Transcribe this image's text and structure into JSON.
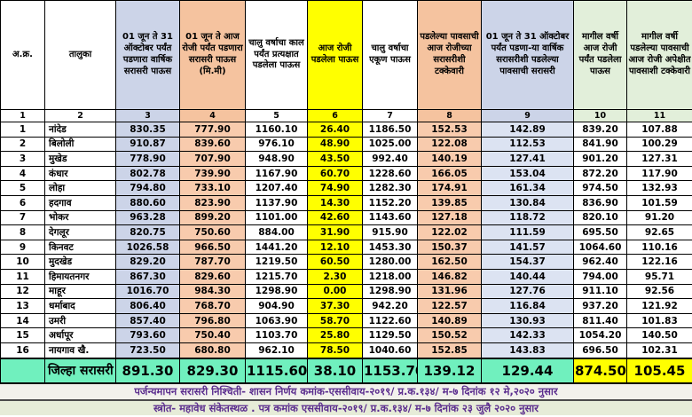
{
  "colors": {
    "blue_header": "#CCD4E8",
    "blue_cell": "#DCE3F2",
    "peach_header": "#F5C39F",
    "peach_cell": "#F8CBAD",
    "yellow": "#FFFF00",
    "green_header": "#E2EFDA",
    "mint_total": "#70F0BE",
    "footer_text": "#5B2D8E",
    "white": "#FFFFFF"
  },
  "table": {
    "columns": [
      {
        "num": "1",
        "label": "अ.क्र.",
        "header_bg": "#FFFFFF",
        "cell_bg": "#FFFFFF"
      },
      {
        "num": "2",
        "label": "तालुका",
        "header_bg": "#FFFFFF",
        "cell_bg": "#FFFFFF"
      },
      {
        "num": "3",
        "label": "01 जून ते 31 ऑक्टोबर पर्यंत पडणारा वार्षिक सरासरी पाऊस",
        "header_bg": "#CCD4E8",
        "cell_bg": "#CCD4E8"
      },
      {
        "num": "4",
        "label": "01 जून ते आज रोजी  पर्यंत पडणारा सरासरी पाऊस (मि.मी)",
        "header_bg": "#F5C39F",
        "cell_bg": "#F8CBAD"
      },
      {
        "num": "5",
        "label": "चालु वर्षाचा काल पर्यंत प्रत्यक्षात पडलेला पाऊस",
        "header_bg": "#FFFFFF",
        "cell_bg": "#FFFFFF"
      },
      {
        "num": "6",
        "label": "आज रोजी पडलेला पाऊस",
        "header_bg": "#FFFF00",
        "cell_bg": "#FFFF00"
      },
      {
        "num": "7",
        "label": "चालु वर्षाचा एकूण पाऊस",
        "header_bg": "#FFFFFF",
        "cell_bg": "#FFFFFF"
      },
      {
        "num": "8",
        "label": "पडलेल्या पावसाची आज रोजीच्या सरासरीशी टक्केवारी",
        "header_bg": "#F5C39F",
        "cell_bg": "#F8CBAD"
      },
      {
        "num": "9",
        "label": "01 जून ते 31 ऑक्टोबर पर्यंत पडणा-या वार्षिक सरासरीशी पडलेल्या पावसाची सरासरी",
        "header_bg": "#CCD4E8",
        "cell_bg": "#DCE3F2"
      },
      {
        "num": "10",
        "label": "मागील वर्षी आज रोजी पर्यंत पडलेला पाऊस",
        "header_bg": "#E2EFDA",
        "cell_bg": "#FFFFFF"
      },
      {
        "num": "11",
        "label": "मागील वर्षी पडलेल्या पावसाची आज रोजी अपेक्षीत पावसाशी टक्केवारी",
        "header_bg": "#E2EFDA",
        "cell_bg": "#FFFFFF"
      }
    ],
    "rows": [
      {
        "sr": "1",
        "taluka": "नांदेड",
        "values": [
          "830.35",
          "777.90",
          "1160.10",
          "26.40",
          "1186.50",
          "152.53",
          "142.89",
          "839.20",
          "107.88"
        ]
      },
      {
        "sr": "2",
        "taluka": "बिलोली",
        "values": [
          "910.87",
          "839.60",
          "976.10",
          "48.90",
          "1025.00",
          "122.08",
          "112.53",
          "841.90",
          "100.29"
        ]
      },
      {
        "sr": "3",
        "taluka": "मुखेड",
        "values": [
          "778.90",
          "707.90",
          "948.90",
          "43.50",
          "992.40",
          "140.19",
          "127.41",
          "901.20",
          "127.31"
        ]
      },
      {
        "sr": "4",
        "taluka": "कंधार",
        "values": [
          "802.78",
          "739.90",
          "1167.90",
          "60.70",
          "1228.60",
          "166.05",
          "153.04",
          "872.20",
          "117.90"
        ]
      },
      {
        "sr": "5",
        "taluka": "लोहा",
        "values": [
          "794.80",
          "733.10",
          "1207.40",
          "74.90",
          "1282.30",
          "174.91",
          "161.34",
          "974.50",
          "132.93"
        ]
      },
      {
        "sr": "6",
        "taluka": "हदगाव",
        "values": [
          "880.60",
          "823.90",
          "1137.90",
          "14.30",
          "1152.20",
          "139.85",
          "130.84",
          "836.90",
          "101.59"
        ]
      },
      {
        "sr": "7",
        "taluka": "भोकर",
        "values": [
          "963.28",
          "899.20",
          "1101.00",
          "42.60",
          "1143.60",
          "127.18",
          "118.72",
          "820.10",
          "91.20"
        ]
      },
      {
        "sr": "8",
        "taluka": "देगलूर",
        "values": [
          "820.75",
          "750.60",
          "884.00",
          "31.90",
          "915.90",
          "122.02",
          "111.59",
          "695.50",
          "92.65"
        ]
      },
      {
        "sr": "9",
        "taluka": "किनवट",
        "values": [
          "1026.58",
          "966.50",
          "1441.20",
          "12.10",
          "1453.30",
          "150.37",
          "141.57",
          "1064.60",
          "110.16"
        ]
      },
      {
        "sr": "10",
        "taluka": "मुदखेड",
        "values": [
          "829.20",
          "787.70",
          "1219.50",
          "60.50",
          "1280.00",
          "162.50",
          "154.37",
          "962.40",
          "122.16"
        ]
      },
      {
        "sr": "11",
        "taluka": "हिमायतनगर",
        "values": [
          "867.30",
          "829.60",
          "1215.70",
          "2.30",
          "1218.00",
          "146.82",
          "140.44",
          "794.00",
          "95.71"
        ]
      },
      {
        "sr": "12",
        "taluka": "माहूर",
        "values": [
          "1016.70",
          "984.30",
          "1298.90",
          "0.00",
          "1298.90",
          "131.96",
          "127.76",
          "911.10",
          "92.56"
        ]
      },
      {
        "sr": "13",
        "taluka": "धर्माबाद",
        "values": [
          "806.40",
          "768.70",
          "904.90",
          "37.30",
          "942.20",
          "122.57",
          "116.84",
          "937.20",
          "121.92"
        ]
      },
      {
        "sr": "14",
        "taluka": "उमरी",
        "values": [
          "857.40",
          "796.80",
          "1063.90",
          "58.70",
          "1122.60",
          "140.89",
          "130.93",
          "811.40",
          "101.83"
        ]
      },
      {
        "sr": "15",
        "taluka": "अर्धापूर",
        "values": [
          "793.60",
          "750.40",
          "1103.70",
          "25.80",
          "1129.50",
          "150.52",
          "142.33",
          "1054.20",
          "140.50"
        ]
      },
      {
        "sr": "16",
        "taluka": "नायगाव खै.",
        "values": [
          "723.50",
          "680.80",
          "962.10",
          "78.50",
          "1040.60",
          "152.85",
          "143.83",
          "696.50",
          "102.31"
        ]
      }
    ],
    "total_row": {
      "label": "जिल्हा सरासरी",
      "values": [
        "891.30",
        "829.30",
        "1115.60",
        "38.10",
        "1153.70",
        "139.12",
        "129.44",
        "874.50",
        "105.45"
      ],
      "bg": "#70F0BE",
      "highlight_bg": "#FFFF00",
      "highlight_from_value_index": 7
    }
  },
  "footer": {
    "line1": "पर्जन्यमापन सरासरी निश्चिती- शासन निर्णय कमांक-एससीवाय-२०१९/ प्र.क.१३४/ म-७ दिनांक १२ मे,२०२० नुसार",
    "line2": "स्त्रोत- महावेध संकेतस्थळ . पत्र कमांक एससीवाय-२०१९/ प्र.क.१३४/ म-७ दिनांक २३ जुलै २०२० नुसार"
  }
}
